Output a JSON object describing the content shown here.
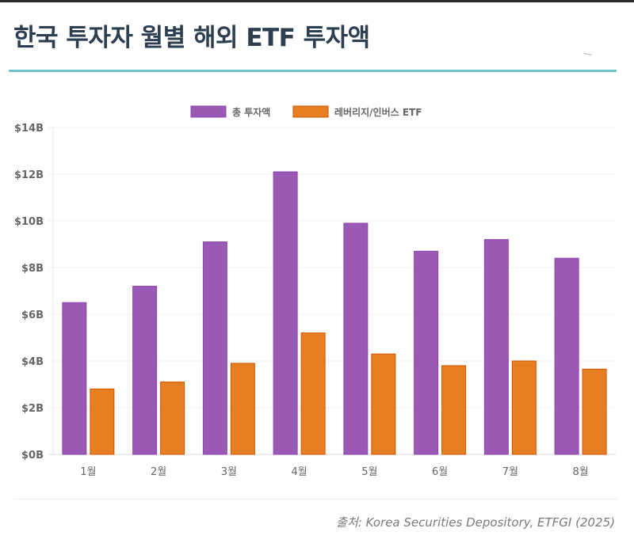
{
  "header": {
    "title": "한국 투자자 월별 해외 ETF 투자액"
  },
  "footer": {
    "source": "출처: Korea Securities Depository, ETFGI (2025)"
  },
  "chart_data": {
    "type": "bar",
    "title": "",
    "xlabel": "",
    "ylabel": "",
    "categories": [
      "1월",
      "2월",
      "3월",
      "4월",
      "5월",
      "6월",
      "7월",
      "8월"
    ],
    "series": [
      {
        "name": "총 투자액",
        "color": "#9b59b6",
        "border": "#8e44ad",
        "values": [
          6.5,
          7.2,
          9.1,
          12.1,
          9.9,
          8.7,
          9.2,
          8.4
        ]
      },
      {
        "name": "레버리지/인버스 ETF",
        "color": "#e67e22",
        "border": "#d35400",
        "values": [
          2.8,
          3.1,
          3.9,
          5.2,
          4.3,
          3.8,
          4.0,
          3.65
        ]
      }
    ],
    "ylim": [
      0,
      14
    ],
    "yticks": [
      0,
      2,
      4,
      6,
      8,
      10,
      12,
      14
    ],
    "ytick_labels": [
      "$0B",
      "$2B",
      "$4B",
      "$6B",
      "$8B",
      "$10B",
      "$12B",
      "$14B"
    ],
    "units": "USD billions",
    "grid": true,
    "legend_position": "top-center"
  }
}
